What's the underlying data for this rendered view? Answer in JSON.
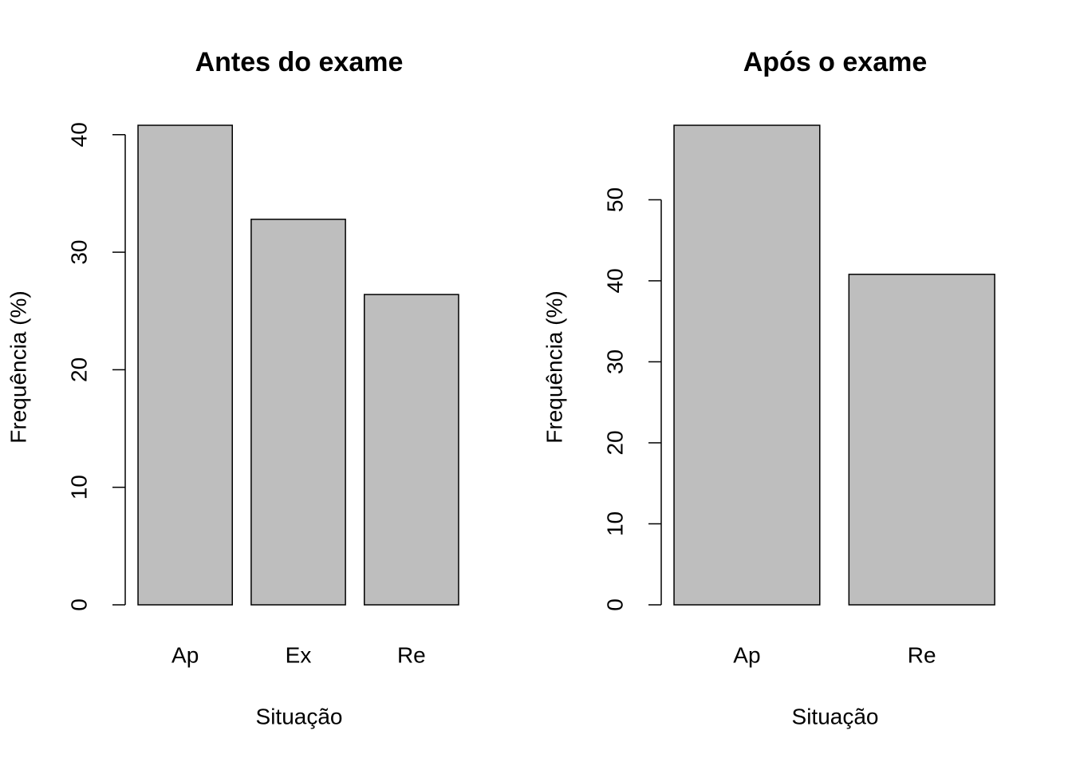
{
  "chart_data": [
    {
      "type": "bar",
      "title": "Antes do exame",
      "xlabel": "Situação",
      "ylabel": "Frequência (%)",
      "categories": [
        "Ap",
        "Ex",
        "Re"
      ],
      "values": [
        40.8,
        32.8,
        26.4
      ],
      "color": "#bebebe",
      "ylim": [
        0,
        40.8
      ],
      "yticks": [
        0,
        10,
        20,
        30,
        40
      ]
    },
    {
      "type": "bar",
      "title": "Após o exame",
      "xlabel": "Situação",
      "ylabel": "Frequência (%)",
      "categories": [
        "Ap",
        "Re"
      ],
      "values": [
        59.2,
        40.8
      ],
      "color": "#bebebe",
      "ylim": [
        0,
        59.2
      ],
      "yticks": [
        0,
        10,
        20,
        30,
        40,
        50
      ]
    }
  ]
}
